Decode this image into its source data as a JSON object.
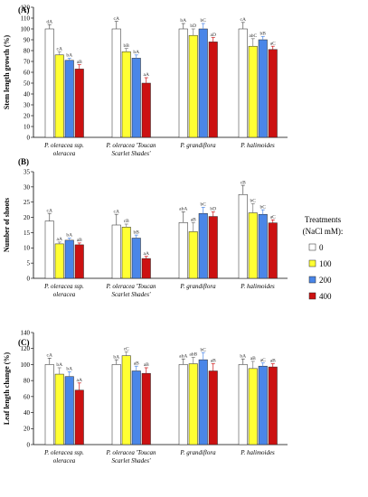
{
  "chart_data": [
    {
      "type": "bar",
      "panel": "(A)",
      "ylabel": "Stem length growth (%)",
      "ylim": [
        0,
        120
      ],
      "yticks": [
        0,
        10,
        20,
        30,
        40,
        50,
        60,
        70,
        80,
        90,
        100,
        110,
        120
      ],
      "categories": [
        [
          "P. oleracea ssp.",
          "oleracea"
        ],
        [
          "P. oleracea 'Toucan",
          "Scarlet Shades'"
        ],
        [
          "P. grandiflora"
        ],
        [
          "P. halimoides"
        ]
      ],
      "series": [
        {
          "name": "0",
          "values": [
            100,
            100,
            100,
            100
          ],
          "errors": [
            4,
            7,
            5,
            6
          ],
          "letters": [
            "dA",
            "cA",
            "bA",
            "cA"
          ]
        },
        {
          "name": "100",
          "values": [
            76,
            79,
            94,
            84
          ],
          "errors": [
            3,
            3,
            6,
            7
          ],
          "letters": [
            "cA",
            "bB",
            "bD",
            "abC"
          ]
        },
        {
          "name": "200",
          "values": [
            71,
            73,
            100,
            90
          ],
          "errors": [
            2,
            3,
            5,
            3
          ],
          "letters": [
            "bA",
            "bA",
            "bC",
            "bB"
          ]
        },
        {
          "name": "400",
          "values": [
            63,
            50,
            88,
            81
          ],
          "errors": [
            4,
            5,
            4,
            3
          ],
          "letters": [
            "aB",
            "aA",
            "aD",
            "aC"
          ]
        }
      ]
    },
    {
      "type": "bar",
      "panel": "(B)",
      "ylabel": "Number of shoots",
      "ylim": [
        0,
        35
      ],
      "yticks": [
        0,
        5,
        10,
        15,
        20,
        25,
        30,
        35
      ],
      "categories": [
        [
          "P. oleracea ssp.",
          "oleracea"
        ],
        [
          "P. oleracea 'Toucan",
          "Scarlet Shades'"
        ],
        [
          "P. grandiflora"
        ],
        [
          "P. halimoides"
        ]
      ],
      "series": [
        {
          "name": "0",
          "values": [
            18.8,
            17.5,
            18.3,
            27.5
          ],
          "errors": [
            2.5,
            3.5,
            3.5,
            3.0
          ],
          "letters": [
            "cA",
            "cA",
            "abA",
            "cB"
          ]
        },
        {
          "name": "100",
          "values": [
            11.3,
            16.8,
            15.3,
            21.5
          ],
          "errors": [
            0.6,
            1.0,
            3.0,
            3.0
          ],
          "letters": [
            "aA",
            "cB",
            "aB",
            "bC"
          ]
        },
        {
          "name": "200",
          "values": [
            12.5,
            13.2,
            21.3,
            21.0
          ],
          "errors": [
            0.7,
            1.0,
            2.0,
            1.5
          ],
          "letters": [
            "bA",
            "bB",
            "bC",
            "bC"
          ]
        },
        {
          "name": "400",
          "values": [
            11.0,
            6.5,
            20.3,
            18.2
          ],
          "errors": [
            0.6,
            0.7,
            1.5,
            1.0
          ],
          "letters": [
            "aB",
            "aA",
            "bD",
            "aC"
          ]
        }
      ]
    },
    {
      "type": "bar",
      "panel": "(C)",
      "ylabel": "Leaf length change (%)",
      "ylim": [
        0,
        140
      ],
      "yticks": [
        0,
        20,
        40,
        60,
        80,
        100,
        120,
        140
      ],
      "categories": [
        [
          "P. oleracea ssp.",
          "oleracea"
        ],
        [
          "P. oleracea 'Toucan",
          "Scarlet Shades'"
        ],
        [
          "P. grandiflora"
        ],
        [
          "P. halimoides"
        ]
      ],
      "series": [
        {
          "name": "0",
          "values": [
            100,
            100,
            100,
            100
          ],
          "errors": [
            8,
            6,
            7,
            7
          ],
          "letters": [
            "cA",
            "bA",
            "abA",
            "bA"
          ]
        },
        {
          "name": "100",
          "values": [
            88,
            111,
            101,
            95
          ],
          "errors": [
            8,
            5,
            8,
            9
          ],
          "letters": [
            "bA",
            "cC",
            "abB",
            "aB"
          ]
        },
        {
          "name": "200",
          "values": [
            85,
            92,
            106,
            98
          ],
          "errors": [
            6,
            6,
            9,
            4
          ],
          "letters": [
            "bA",
            "aB",
            "bC",
            "aC"
          ]
        },
        {
          "name": "400",
          "values": [
            68,
            89,
            92,
            97
          ],
          "errors": [
            9,
            7,
            9,
            4
          ],
          "letters": [
            "aA",
            "aB",
            "aB",
            "aB"
          ]
        }
      ]
    }
  ],
  "legend": {
    "title_line1": "Treatments",
    "title_line2": "(NaCl mM):",
    "placement": "right",
    "items": [
      {
        "label": "0",
        "color": "#ffffff"
      },
      {
        "label": "100",
        "color": "#ffff33"
      },
      {
        "label": "200",
        "color": "#4a86e8"
      },
      {
        "label": "400",
        "color": "#cc1111"
      }
    ]
  },
  "colors": {
    "series": [
      "#ffffff",
      "#ffff33",
      "#4a86e8",
      "#cc1111"
    ],
    "error_bar": [
      "#555555",
      "#777777",
      "#4a86e8",
      "#cc1111"
    ],
    "letter": "#333333"
  }
}
